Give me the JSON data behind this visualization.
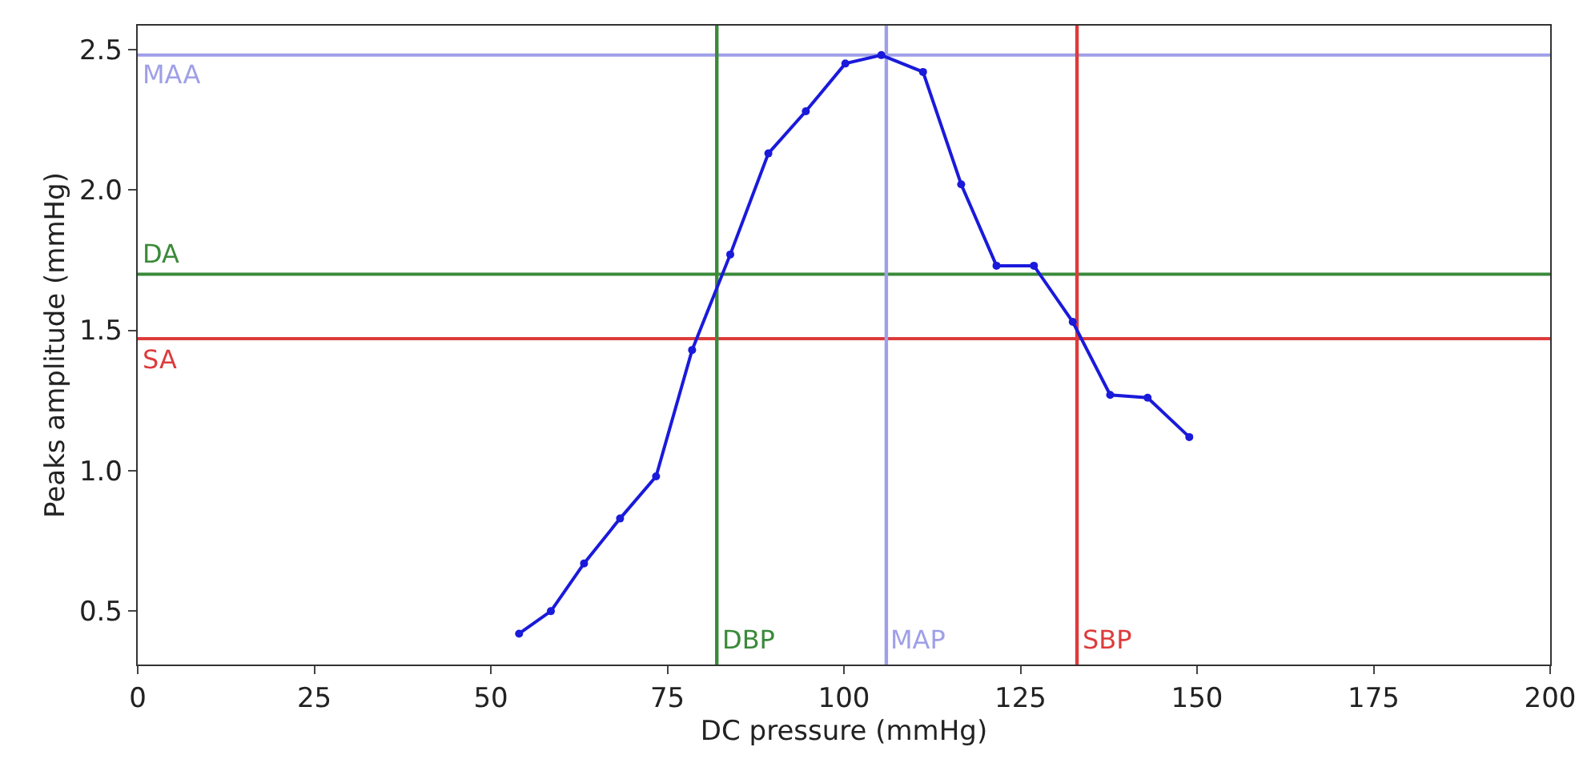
{
  "chart_data": {
    "type": "line",
    "xlabel": "DC pressure (mmHg)",
    "ylabel": "Peaks amplitude (mmHg)",
    "x": [
      54,
      58.5,
      63.2,
      68.3,
      73.4,
      78.5,
      83.9,
      89.3,
      94.6,
      100.2,
      105.3,
      111.2,
      116.6,
      121.6,
      126.9,
      132.4,
      137.7,
      143,
      148.9
    ],
    "series": [
      {
        "color": "#1a1adb",
        "values": [
          0.42,
          0.5,
          0.67,
          0.83,
          0.98,
          1.43,
          1.77,
          2.13,
          2.28,
          2.45,
          2.48,
          2.42,
          2.02,
          1.73,
          1.73,
          1.53,
          1.27,
          1.26,
          1.12
        ]
      }
    ],
    "marker": "circle",
    "line_style": "solid",
    "grid": false,
    "xlim": [
      0,
      200
    ],
    "xticks": [
      0,
      25,
      50,
      75,
      100,
      125,
      150,
      175,
      200
    ],
    "ylim": [
      0.31,
      2.585
    ],
    "yticks": [
      {
        "value": 0.5,
        "label": "0.5"
      },
      {
        "value": 1,
        "label": "1.0"
      },
      {
        "value": 1.5,
        "label": "1.5"
      },
      {
        "value": 2,
        "label": "2.0"
      },
      {
        "value": 2.5,
        "label": "2.5"
      }
    ],
    "ref_lines": [
      {
        "axis": "y",
        "value": 2.48,
        "label": "MAA",
        "color": "#9f9fe8"
      },
      {
        "axis": "y",
        "value": 1.7,
        "label": "DA",
        "color": "#3a8a3a"
      },
      {
        "axis": "y",
        "value": 1.47,
        "label": "SA",
        "color": "#dd3b3b"
      },
      {
        "axis": "x",
        "value": 82,
        "label": "DBP",
        "color": "#3a8a3a"
      },
      {
        "axis": "x",
        "value": 106,
        "label": "MAP",
        "color": "#9f9fe8"
      },
      {
        "axis": "x",
        "value": 133,
        "label": "SBP",
        "color": "#dd3b3b"
      }
    ]
  }
}
